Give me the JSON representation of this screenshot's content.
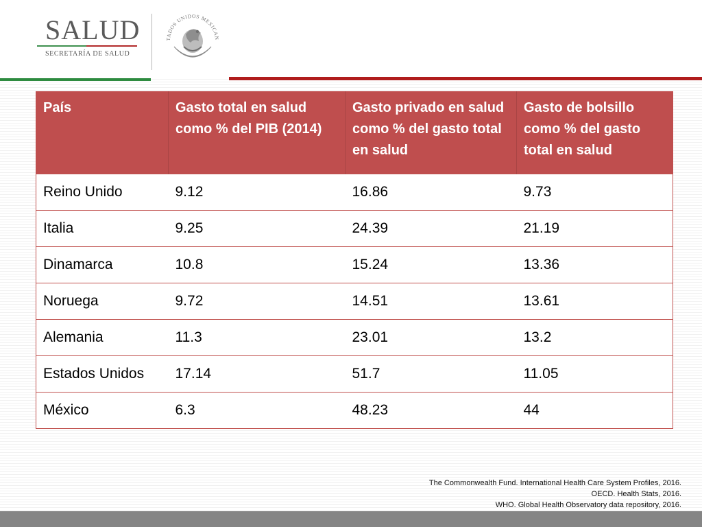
{
  "header": {
    "logo_title": "SALUD",
    "logo_subtitle": "SECRETARÍA DE SALUD",
    "seal_text": "ESTADOS UNIDOS MEXICANOS",
    "colors": {
      "green": "#2e8b40",
      "red": "#b01c1c",
      "table_header": "#bf4e4e"
    }
  },
  "table": {
    "columns": [
      "País",
      "Gasto total en salud como % del PIB (2014)",
      "Gasto privado en salud como % del gasto total en salud",
      "Gasto de bolsillo como % del gasto total en salud"
    ],
    "rows": [
      [
        "Reino Unido",
        "9.12",
        "16.86",
        "9.73"
      ],
      [
        "Italia",
        "9.25",
        "24.39",
        "21.19"
      ],
      [
        "Dinamarca",
        "10.8",
        "15.24",
        "13.36"
      ],
      [
        "Noruega",
        "9.72",
        "14.51",
        "13.61"
      ],
      [
        "Alemania",
        "11.3",
        "23.01",
        "13.2"
      ],
      [
        "Estados Unidos",
        "17.14",
        "51.7",
        "11.05"
      ],
      [
        "México",
        "6.3",
        "48.23",
        "44"
      ]
    ]
  },
  "references": [
    "The Commonwealth Fund. International Health Care System Profiles, 2016.",
    "OECD. Health Stats, 2016.",
    "WHO. Global Health Observatory data repository, 2016."
  ]
}
